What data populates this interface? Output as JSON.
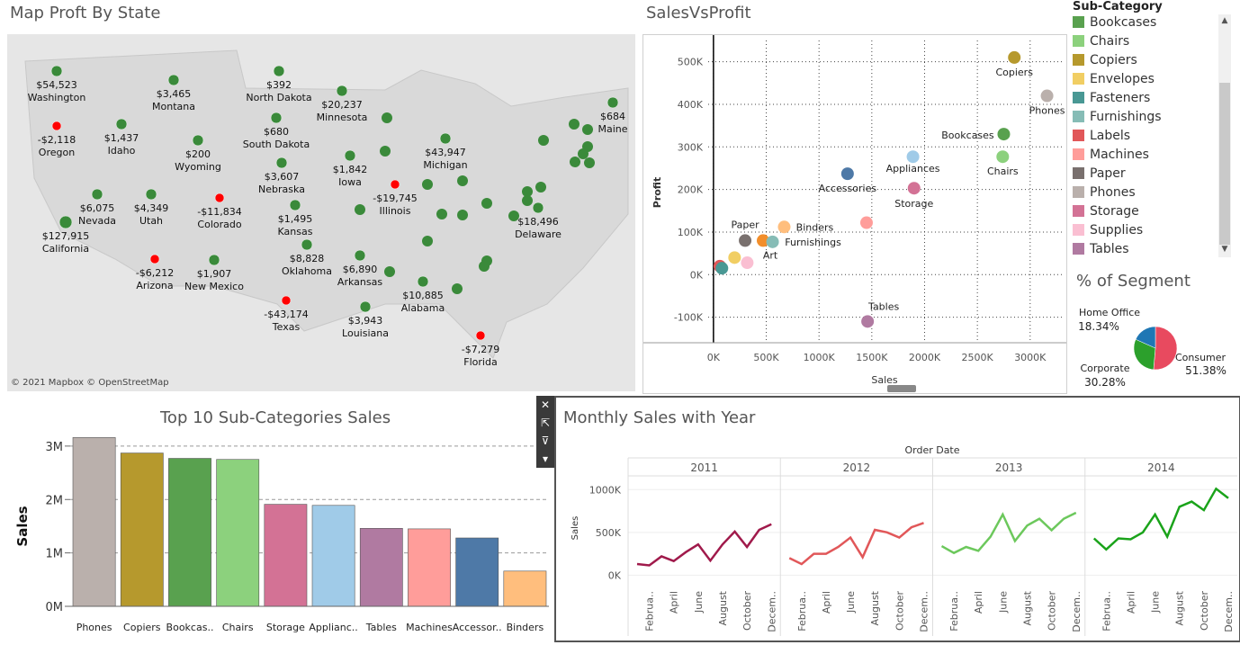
{
  "map": {
    "title": "Map Proft By State",
    "attribution": "© 2021 Mapbox © OpenStreetMap",
    "states": [
      {
        "name": "Washington",
        "value": "$54,523",
        "profit": "pos"
      },
      {
        "name": "Oregon",
        "value": "-$2,118",
        "profit": "neg"
      },
      {
        "name": "Idaho",
        "value": "$1,437",
        "profit": "pos"
      },
      {
        "name": "Montana",
        "value": "$3,465",
        "profit": "pos"
      },
      {
        "name": "Wyoming",
        "value": "$200",
        "profit": "pos"
      },
      {
        "name": "Nevada",
        "value": "$6,075",
        "profit": "pos"
      },
      {
        "name": "California",
        "value": "$127,915",
        "profit": "pos"
      },
      {
        "name": "Utah",
        "value": "$4,349",
        "profit": "pos"
      },
      {
        "name": "Colorado",
        "value": "-$11,834",
        "profit": "neg"
      },
      {
        "name": "Arizona",
        "value": "-$6,212",
        "profit": "neg"
      },
      {
        "name": "New Mexico",
        "value": "$1,907",
        "profit": "pos"
      },
      {
        "name": "North Dakota",
        "value": "$392",
        "profit": "pos"
      },
      {
        "name": "South Dakota",
        "value": "$680",
        "profit": "pos"
      },
      {
        "name": "Nebraska",
        "value": "$3,607",
        "profit": "pos"
      },
      {
        "name": "Kansas",
        "value": "$1,495",
        "profit": "pos"
      },
      {
        "name": "Oklahoma",
        "value": "$8,828",
        "profit": "pos"
      },
      {
        "name": "Texas",
        "value": "-$43,174",
        "profit": "neg"
      },
      {
        "name": "Minnesota",
        "value": "$20,237",
        "profit": "pos"
      },
      {
        "name": "Iowa",
        "value": "$1,842",
        "profit": "pos"
      },
      {
        "name": "Arkansas",
        "value": "$6,890",
        "profit": "pos"
      },
      {
        "name": "Louisiana",
        "value": "$3,943",
        "profit": "pos"
      },
      {
        "name": "Illinois",
        "value": "-$19,745",
        "profit": "neg"
      },
      {
        "name": "Michigan",
        "value": "$43,947",
        "profit": "pos"
      },
      {
        "name": "Alabama",
        "value": "$10,885",
        "profit": "pos"
      },
      {
        "name": "Florida",
        "value": "-$7,279",
        "profit": "neg"
      },
      {
        "name": "Delaware",
        "value": "$18,496",
        "profit": "pos"
      },
      {
        "name": "Maine",
        "value": "$684",
        "profit": "pos"
      }
    ]
  },
  "legend": {
    "title": "Sub-Category",
    "items": [
      {
        "label": "Bookcases",
        "color": "#59a14f"
      },
      {
        "label": "Chairs",
        "color": "#8cd17d"
      },
      {
        "label": "Copiers",
        "color": "#b6992d"
      },
      {
        "label": "Envelopes",
        "color": "#f1ce63"
      },
      {
        "label": "Fasteners",
        "color": "#499894"
      },
      {
        "label": "Furnishings",
        "color": "#86bcb6"
      },
      {
        "label": "Labels",
        "color": "#e15759"
      },
      {
        "label": "Machines",
        "color": "#ff9d9a"
      },
      {
        "label": "Paper",
        "color": "#79706e"
      },
      {
        "label": "Phones",
        "color": "#bab0ac"
      },
      {
        "label": "Storage",
        "color": "#d37295"
      },
      {
        "label": "Supplies",
        "color": "#fabfd2"
      },
      {
        "label": "Tables",
        "color": "#b07aa1"
      }
    ]
  },
  "chart_data": [
    {
      "type": "scatter",
      "title": "SalesVsProfit",
      "xlabel": "Sales",
      "ylabel": "Profit",
      "xlim": [
        -50,
        3300
      ],
      "ylim": [
        -160,
        550
      ],
      "xticks": [
        {
          "v": 0,
          "label": "0K"
        },
        {
          "v": 500,
          "label": "500K"
        },
        {
          "v": 1000,
          "label": "1000K"
        },
        {
          "v": 1500,
          "label": "1500K"
        },
        {
          "v": 2000,
          "label": "2000K"
        },
        {
          "v": 2500,
          "label": "2500K"
        },
        {
          "v": 3000,
          "label": "3000K"
        }
      ],
      "yticks": [
        {
          "v": -100,
          "label": "-100K"
        },
        {
          "v": 0,
          "label": "0K"
        },
        {
          "v": 100,
          "label": "100K"
        },
        {
          "v": 200,
          "label": "200K"
        },
        {
          "v": 300,
          "label": "300K"
        },
        {
          "v": 400,
          "label": "400K"
        },
        {
          "v": 500,
          "label": "500K"
        }
      ],
      "grid": true,
      "points": [
        {
          "name": "Copiers",
          "x": 2850,
          "y": 510,
          "color": "#b6992d",
          "label": "Copiers"
        },
        {
          "name": "Phones",
          "x": 3160,
          "y": 420,
          "color": "#bab0ac",
          "label": "Phones"
        },
        {
          "name": "Bookcases",
          "x": 2750,
          "y": 330,
          "color": "#59a14f",
          "label": "Bookcases"
        },
        {
          "name": "Chairs",
          "x": 2740,
          "y": 277,
          "color": "#8cd17d",
          "label": "Chairs"
        },
        {
          "name": "Appliances",
          "x": 1890,
          "y": 277,
          "color": "#a0cbe8",
          "label": "Appliances"
        },
        {
          "name": "Storage",
          "x": 1900,
          "y": 203,
          "color": "#d37295",
          "label": "Storage"
        },
        {
          "name": "Accessories",
          "x": 1270,
          "y": 237,
          "color": "#4e79a7",
          "label": "Accessories"
        },
        {
          "name": "Machines",
          "x": 1450,
          "y": 122,
          "color": "#ff9d9a",
          "label": ""
        },
        {
          "name": "Binders",
          "x": 670,
          "y": 112,
          "color": "#ffbe7d",
          "label": "Binders"
        },
        {
          "name": "Paper",
          "x": 300,
          "y": 80,
          "color": "#79706e",
          "label": "Paper"
        },
        {
          "name": "Art",
          "x": 470,
          "y": 80,
          "color": "#f28e2b",
          "label": "Art"
        },
        {
          "name": "Furnishings",
          "x": 560,
          "y": 77,
          "color": "#86bcb6",
          "label": "Furnishings"
        },
        {
          "name": "Envelopes",
          "x": 200,
          "y": 40,
          "color": "#f1ce63",
          "label": ""
        },
        {
          "name": "Supplies",
          "x": 320,
          "y": 28,
          "color": "#fabfd2",
          "label": ""
        },
        {
          "name": "Labels",
          "x": 60,
          "y": 20,
          "color": "#e15759",
          "label": ""
        },
        {
          "name": "Fasteners",
          "x": 80,
          "y": 15,
          "color": "#499894",
          "label": ""
        },
        {
          "name": "Tables",
          "x": 1460,
          "y": -110,
          "color": "#b07aa1",
          "label": "Tables"
        }
      ]
    },
    {
      "type": "pie",
      "title": "% of Segment",
      "slices": [
        {
          "name": "Consumer",
          "value": 51.38,
          "label": "51.38%",
          "color": "#e84a5f"
        },
        {
          "name": "Corporate",
          "value": 30.28,
          "label": "30.28%",
          "color": "#2ca02c"
        },
        {
          "name": "Home Office",
          "value": 18.34,
          "label": "18.34%",
          "color": "#1f77b4"
        }
      ]
    },
    {
      "type": "bar",
      "title": "Top 10 Sub-Categories Sales",
      "ylabel": "Sales",
      "ylim": [
        0,
        3.2
      ],
      "yticks": [
        {
          "v": 0,
          "label": "0M"
        },
        {
          "v": 1,
          "label": "1M"
        },
        {
          "v": 2,
          "label": "2M"
        },
        {
          "v": 3,
          "label": "3M"
        }
      ],
      "categories": [
        "Phones",
        "Copiers",
        "Bookcas..",
        "Chairs",
        "Storage",
        "Applianc..",
        "Tables",
        "Machines",
        "Accessor..",
        "Binders"
      ],
      "values": [
        3.16,
        2.87,
        2.77,
        2.75,
        1.91,
        1.89,
        1.46,
        1.45,
        1.28,
        0.66
      ],
      "colors": [
        "#bab0ac",
        "#b6992d",
        "#59a14f",
        "#8cd17d",
        "#d37295",
        "#a0cbe8",
        "#b07aa1",
        "#ff9d9a",
        "#4e79a7",
        "#ffbe7d"
      ]
    },
    {
      "type": "line",
      "title": "Monthly Sales with Year",
      "xlabel": "Order Date",
      "ylabel": "Sales",
      "ylim": [
        -80,
        1150
      ],
      "yticks": [
        {
          "v": 0,
          "label": "0K"
        },
        {
          "v": 500,
          "label": "500K"
        },
        {
          "v": 1000,
          "label": "1000K"
        }
      ],
      "x_month_labels": [
        "Februa..",
        "April",
        "June",
        "August",
        "October",
        "Decem.."
      ],
      "series": [
        {
          "name": "2011",
          "color": "#a01a4b",
          "values": [
            130,
            115,
            220,
            165,
            270,
            360,
            170,
            360,
            510,
            330,
            530,
            595
          ]
        },
        {
          "name": "2012",
          "color": "#e15759",
          "values": [
            200,
            130,
            250,
            250,
            330,
            440,
            210,
            530,
            500,
            440,
            560,
            610
          ]
        },
        {
          "name": "2013",
          "color": "#6cc85c",
          "values": [
            340,
            260,
            330,
            285,
            450,
            710,
            400,
            580,
            660,
            525,
            660,
            730
          ]
        },
        {
          "name": "2014",
          "color": "#1aa31a",
          "values": [
            430,
            300,
            430,
            420,
            500,
            710,
            450,
            800,
            860,
            760,
            1010,
            900
          ]
        }
      ]
    }
  ]
}
